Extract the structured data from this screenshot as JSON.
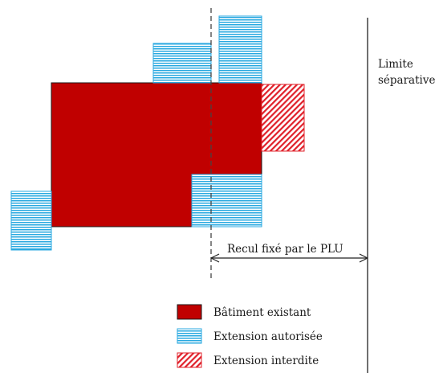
{
  "diagram": {
    "limit_label_line1": "Limite",
    "limit_label_line2": "séparative",
    "setback_label": "Recul fixé par le PLU"
  },
  "legend": {
    "items": [
      {
        "label": "Bâtiment existant",
        "style": "solid"
      },
      {
        "label": "Extension autorisée",
        "style": "stripes"
      },
      {
        "label": "Extension interdite",
        "style": "hatch"
      }
    ]
  },
  "colors": {
    "existing_building": "#c00000",
    "authorized_extension": "#29a9e0",
    "forbidden_extension": "#e0202a"
  }
}
